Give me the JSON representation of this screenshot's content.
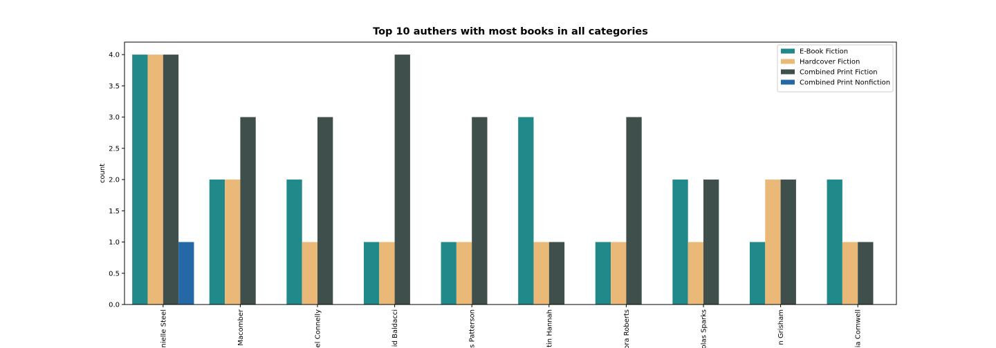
{
  "chart_data": {
    "type": "bar",
    "title": "Top 10 authers with most books in all categories",
    "y_label": "count",
    "categories": [
      "nielle Steel",
      "Macomber",
      "el Connelly",
      "id Baldacci",
      "s Patterson",
      "tin Hannah",
      "ora Roberts",
      "olas Sparks",
      "n Grisham",
      "ia Cornwell"
    ],
    "series": [
      {
        "name": "E-Book Fiction",
        "color": "#21898a",
        "values": [
          4,
          2,
          2,
          1,
          1,
          3,
          1,
          2,
          1,
          2
        ]
      },
      {
        "name": "Hardcover Fiction",
        "color": "#ebb977",
        "values": [
          4,
          2,
          1,
          1,
          1,
          1,
          1,
          1,
          2,
          1
        ]
      },
      {
        "name": "Combined Print Fiction",
        "color": "#3f4f4c",
        "values": [
          4,
          3,
          3,
          4,
          3,
          1,
          3,
          2,
          2,
          1
        ]
      },
      {
        "name": "Combined Print Nonfiction",
        "color": "#2469a6",
        "values": [
          1,
          null,
          null,
          null,
          null,
          null,
          null,
          null,
          null,
          null
        ]
      }
    ],
    "ylim": [
      0,
      4.2
    ],
    "yticks": [
      {
        "value": 0,
        "label": "0.0"
      },
      {
        "value": 0.5,
        "label": "0.5"
      },
      {
        "value": 1,
        "label": "1.0"
      },
      {
        "value": 1.5,
        "label": "1.5"
      },
      {
        "value": 2,
        "label": "2.0"
      },
      {
        "value": 2.5,
        "label": "2.5"
      },
      {
        "value": 3,
        "label": "3.0"
      },
      {
        "value": 3.5,
        "label": "3.5"
      },
      {
        "value": 4,
        "label": "4.0"
      }
    ],
    "legend": "upper right"
  }
}
